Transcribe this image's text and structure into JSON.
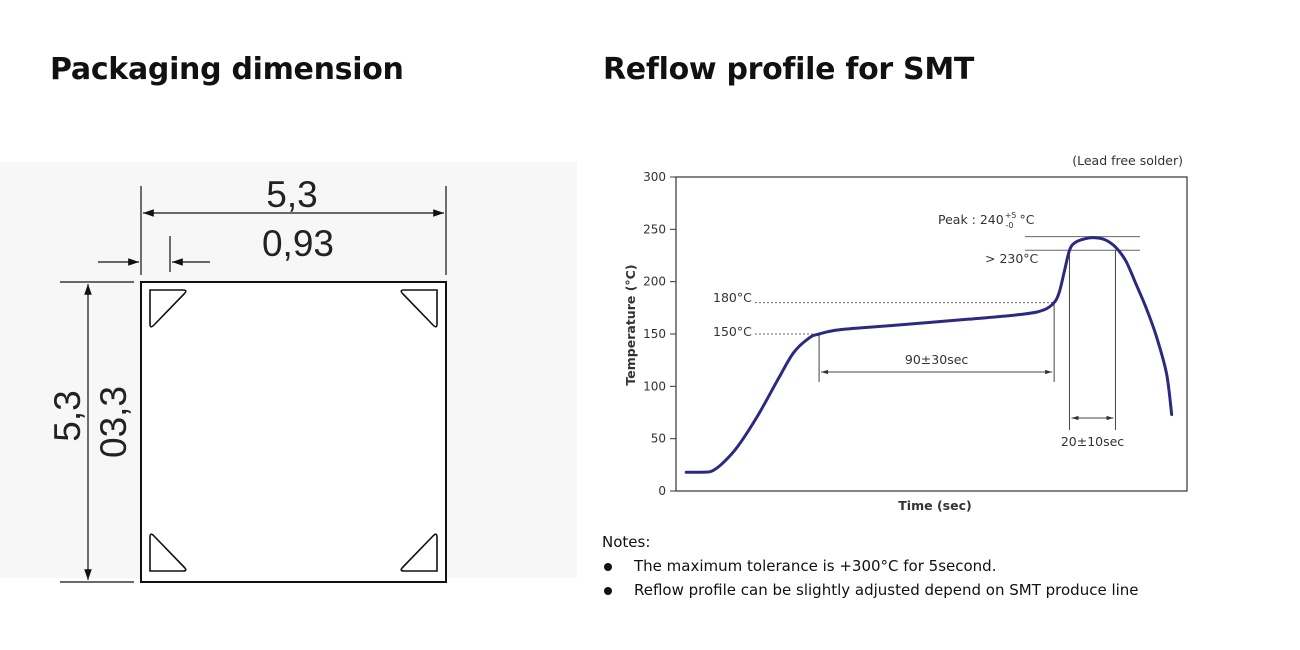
{
  "packaging": {
    "title": "Packaging dimension",
    "width_label": "5,3",
    "pad_label": "0,93",
    "height_label": "5,3",
    "pad_height_label": "03,3"
  },
  "reflow": {
    "title": "Reflow profile for SMT",
    "note_corner": "(Lead free solder)",
    "peak_label": "Peak : 240",
    "peak_sup": "+5",
    "peak_sub": "-0",
    "peak_unit": "°C",
    "above_230_label": "> 230°C",
    "label_180": "180°C",
    "label_150": "150°C",
    "preheat_label": "90±30sec",
    "reflow_time_label": "20±10sec"
  },
  "chart_data": {
    "type": "line",
    "title": "Reflow profile for SMT",
    "xlabel": "Time (sec)",
    "ylabel": "Temperature (°C)",
    "ylim": [
      0,
      300
    ],
    "yticks": [
      0,
      50,
      100,
      150,
      200,
      250,
      300
    ],
    "series": [
      {
        "name": "Lead free solder profile",
        "color": "#2b2a80",
        "points": [
          [
            0,
            18
          ],
          [
            3,
            18
          ],
          [
            5,
            19
          ],
          [
            7,
            26
          ],
          [
            10,
            42
          ],
          [
            14,
            72
          ],
          [
            18,
            107
          ],
          [
            21,
            132
          ],
          [
            24,
            146
          ],
          [
            26,
            150
          ],
          [
            30,
            154
          ],
          [
            40,
            158
          ],
          [
            55,
            164
          ],
          [
            66,
            169
          ],
          [
            70,
            173
          ],
          [
            72,
            180
          ],
          [
            73,
            190
          ],
          [
            74,
            210
          ],
          [
            75,
            230
          ],
          [
            76,
            237
          ],
          [
            78,
            241
          ],
          [
            80,
            242
          ],
          [
            82,
            240
          ],
          [
            84,
            233
          ],
          [
            86,
            220
          ],
          [
            88,
            198
          ],
          [
            90,
            175
          ],
          [
            92,
            148
          ],
          [
            94,
            112
          ],
          [
            95,
            73
          ]
        ]
      }
    ],
    "xlim": [
      -2,
      98
    ],
    "reference_lines": [
      {
        "label": "180°C",
        "y": 180
      },
      {
        "label": "150°C",
        "y": 150
      },
      {
        "label": "> 230°C",
        "y": 230
      },
      {
        "label": "Peak",
        "y": 243
      }
    ],
    "annotations": [
      {
        "text": "90±30sec",
        "from_x": 26,
        "to_x": 72
      },
      {
        "text": "20±10sec",
        "from_x": 75,
        "to_x": 84
      }
    ]
  },
  "notes": {
    "title": "Notes:",
    "items": [
      "The maximum tolerance is +300°C for 5second.",
      "Reflow profile can be slightly adjusted depend on SMT produce line"
    ]
  }
}
